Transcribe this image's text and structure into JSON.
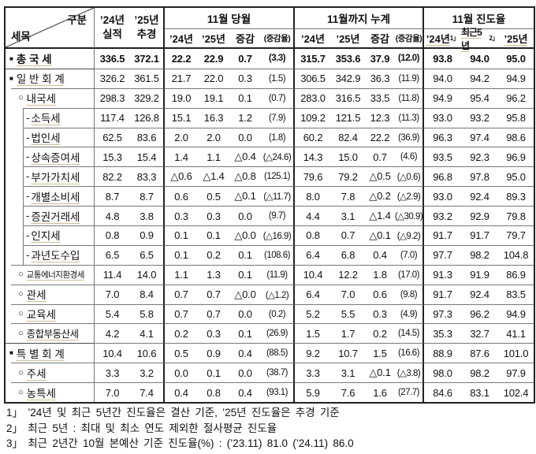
{
  "header": {
    "corner_top_right": "구분",
    "corner_bottom_left": "세목",
    "col_24": {
      "line1": "’24년",
      "line2": "실적"
    },
    "col_25": {
      "line1": "’25년",
      "line2": "추경"
    },
    "groups": [
      {
        "label": "11월 당월",
        "cols": [
          "’24년",
          "’25년",
          "증감",
          "(증감율)"
        ]
      },
      {
        "label": "11월까지 누계",
        "cols": [
          "’24년",
          "’25년",
          "증감",
          "(증감율)"
        ]
      },
      {
        "label": "11월 진도율",
        "cols": [
          {
            "text": "’24년",
            "sup": "1」"
          },
          {
            "text": "최근5년",
            "sup": "2」"
          },
          {
            "text": "’25년",
            "sup": ""
          }
        ]
      }
    ]
  },
  "rows": [
    {
      "bullet": "■",
      "label": "총 국 세",
      "level": 0,
      "bold": true,
      "values": [
        "336.5",
        "372.1",
        "22.2",
        "22.9",
        "0.7",
        "(3.3)",
        "315.7",
        "353.6",
        "37.9",
        "(12.0)",
        "93.8",
        "94.0",
        "95.0"
      ]
    },
    {
      "bullet": "■",
      "label": "일 반 회 계",
      "level": 0,
      "bold": false,
      "values": [
        "326.2",
        "361.5",
        "21.7",
        "22.0",
        "0.3",
        "(1.5)",
        "306.5",
        "342.9",
        "36.3",
        "(11.9)",
        "94.0",
        "94.2",
        "94.9"
      ]
    },
    {
      "bullet": "○",
      "label": "내국세",
      "level": 1,
      "bold": false,
      "values": [
        "298.3",
        "329.2",
        "19.0",
        "19.1",
        "0.1",
        "(0.7)",
        "283.0",
        "316.5",
        "33.5",
        "(11.8)",
        "94.9",
        "95.4",
        "96.2"
      ]
    },
    {
      "bullet": "-",
      "label": "소득세",
      "level": 2,
      "bold": false,
      "values": [
        "117.4",
        "126.8",
        "15.1",
        "16.3",
        "1.2",
        "(7.9)",
        "109.2",
        "121.5",
        "12.3",
        "(11.3)",
        "93.0",
        "93.2",
        "95.8"
      ]
    },
    {
      "bullet": "-",
      "label": "법인세",
      "level": 2,
      "bold": false,
      "values": [
        "62.5",
        "83.6",
        "2.0",
        "2.0",
        "0.0",
        "(1.8)",
        "60.2",
        "82.4",
        "22.2",
        "(36.9)",
        "96.3",
        "97.4",
        "98.6"
      ]
    },
    {
      "bullet": "-",
      "label": "상속증여세",
      "level": 2,
      "bold": false,
      "values": [
        "15.3",
        "15.4",
        "1.4",
        "1.1",
        "△0.4",
        "(△24.6)",
        "14.3",
        "15.0",
        "0.7",
        "(4.6)",
        "93.5",
        "92.3",
        "96.9"
      ]
    },
    {
      "bullet": "-",
      "label": "부가가치세",
      "level": 2,
      "bold": false,
      "values": [
        "82.2",
        "83.3",
        "△0.6",
        "△1.4",
        "△0.8",
        "(125.1)",
        "79.6",
        "79.2",
        "△0.5",
        "(△0.6)",
        "96.8",
        "97.8",
        "95.0"
      ]
    },
    {
      "bullet": "-",
      "label": "개별소비세",
      "level": 2,
      "bold": false,
      "values": [
        "8.7",
        "8.7",
        "0.6",
        "0.5",
        "△0.1",
        "(△11.7)",
        "8.0",
        "7.8",
        "△0.2",
        "(△2.9)",
        "93.0",
        "92.4",
        "89.3"
      ]
    },
    {
      "bullet": "-",
      "label": "증권거래세",
      "level": 2,
      "bold": false,
      "values": [
        "4.8",
        "3.8",
        "0.3",
        "0.3",
        "0.0",
        "(9.7)",
        "4.4",
        "3.1",
        "△1.4",
        "(△30.9)",
        "93.2",
        "92.9",
        "79.8"
      ]
    },
    {
      "bullet": "-",
      "label": "인지세",
      "level": 2,
      "bold": false,
      "values": [
        "0.8",
        "0.9",
        "0.1",
        "0.1",
        "△0.0",
        "(△16.9)",
        "0.8",
        "0.7",
        "△0.1",
        "(△9.2)",
        "91.7",
        "91.7",
        "79.7"
      ]
    },
    {
      "bullet": "-",
      "label": "과년도수입",
      "level": 2,
      "bold": false,
      "values": [
        "6.5",
        "6.5",
        "0.1",
        "0.2",
        "0.1",
        "(108.6)",
        "6.4",
        "6.8",
        "0.4",
        "(7.0)",
        "97.7",
        "98.2",
        "104.8"
      ]
    },
    {
      "bullet": "○",
      "label": "교통에너지환경세",
      "level": 1,
      "bold": false,
      "values": [
        "11.4",
        "14.0",
        "1.1",
        "1.3",
        "0.1",
        "(11.9)",
        "10.4",
        "12.2",
        "1.8",
        "(17.0)",
        "91.3",
        "91.9",
        "86.9"
      ]
    },
    {
      "bullet": "○",
      "label": "관세",
      "level": 1,
      "bold": false,
      "values": [
        "7.0",
        "8.4",
        "0.7",
        "0.7",
        "△0.0",
        "(△1.2)",
        "6.4",
        "7.0",
        "0.6",
        "(9.8)",
        "91.7",
        "92.4",
        "83.5"
      ]
    },
    {
      "bullet": "○",
      "label": "교육세",
      "level": 1,
      "bold": false,
      "values": [
        "5.4",
        "5.8",
        "0.7",
        "0.7",
        "0.0",
        "(0.2)",
        "5.2",
        "5.5",
        "0.3",
        "(4.9)",
        "97.3",
        "96.2",
        "94.9"
      ]
    },
    {
      "bullet": "○",
      "label": "종합부동산세",
      "level": 1,
      "bold": false,
      "values": [
        "4.2",
        "4.1",
        "0.2",
        "0.3",
        "0.1",
        "(26.9)",
        "1.5",
        "1.7",
        "0.2",
        "(14.5)",
        "35.3",
        "32.7",
        "41.1"
      ]
    },
    {
      "bullet": "■",
      "label": "특 별 회 계",
      "level": 0,
      "bold": false,
      "values": [
        "10.4",
        "10.6",
        "0.5",
        "0.9",
        "0.4",
        "(88.5)",
        "9.2",
        "10.7",
        "1.5",
        "(16.6)",
        "88.9",
        "87.6",
        "101.0"
      ]
    },
    {
      "bullet": "○",
      "label": "주세",
      "level": 1,
      "bold": false,
      "values": [
        "3.3",
        "3.2",
        "0.0",
        "0.1",
        "0.0",
        "(38.7)",
        "3.3",
        "3.1",
        "△0.1",
        "(△3.8)",
        "98.0",
        "98.2",
        "97.9"
      ]
    },
    {
      "bullet": "○",
      "label": "농특세",
      "level": 1,
      "bold": false,
      "values": [
        "7.0",
        "7.4",
        "0.4",
        "0.8",
        "0.4",
        "(93.1)",
        "5.9",
        "7.6",
        "1.6",
        "(27.7)",
        "84.6",
        "83.1",
        "102.4"
      ]
    }
  ],
  "footnotes": [
    "1」 ’24년 및 최근 5년간 진도율은 결산 기준, ’25년 진도율은 추경 기준",
    "2」 최근 5년 : 최대 및 최소 연도 제외한 절사평균 진도율",
    "3」 최근 2년간 10월 본예산 기준 진도율(%) : (’23.11) 81.0 (’24.11) 86.0"
  ],
  "colors": {
    "border_thick": "#222222",
    "border_thin": "#777777",
    "underline": "#cbbd97",
    "text": "#111111"
  }
}
